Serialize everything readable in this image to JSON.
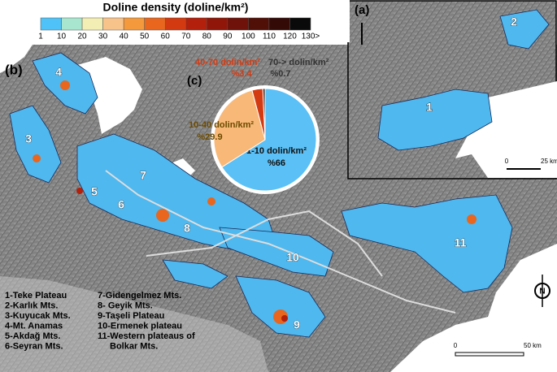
{
  "legend": {
    "title": "Doline density (doline/km²)",
    "ticks": [
      "1",
      "10",
      "20",
      "30",
      "40",
      "50",
      "60",
      "70",
      "80",
      "90",
      "100",
      "110",
      "120",
      "130>"
    ],
    "colors": [
      "#4fc3f7",
      "#a8e6cf",
      "#f3efb4",
      "#f8c38a",
      "#f59a3c",
      "#e8661e",
      "#d33a12",
      "#b3200c",
      "#8f1608",
      "#6e120a",
      "#501008",
      "#330a06",
      "#0a0a0a"
    ]
  },
  "panels": {
    "a": "(a)",
    "b": "(b)",
    "c": "(c)"
  },
  "chart_data": {
    "type": "pie",
    "categories": [
      "1-10 dolin/km²",
      "10-40 dolin/km²",
      "40-70 dolin/km²",
      "70-> dolin/km²"
    ],
    "values": [
      66,
      29.9,
      3.4,
      0.7
    ],
    "value_labels": [
      "%66",
      "%29.9",
      "%3.4",
      "%0.7"
    ],
    "colors": [
      "#5bc0f5",
      "#f8b878",
      "#d33a12",
      "#2a2a2a"
    ]
  },
  "map_labels": [
    "1",
    "2",
    "3",
    "4",
    "5",
    "6",
    "7",
    "8",
    "9",
    "10",
    "11"
  ],
  "inset_labels": [
    "1",
    "2"
  ],
  "key": [
    "1-Teke Plateau",
    "2-Karlık Mts.",
    "3-Kuyucak Mts.",
    "4-Mt. Anamas",
    "5-Akdağ Mts.",
    "6-Seyran Mts.",
    "7-Gidengelmez Mts.",
    "8- Geyik Mts.",
    "9-Taşeli Plateau",
    "10-Ermenek plateau",
    "11-Western plateaus of",
    "Bolkar Mts."
  ],
  "scale_a": [
    "0",
    "25 km"
  ],
  "scale_b": [
    "0",
    "50 km"
  ],
  "north": "N"
}
